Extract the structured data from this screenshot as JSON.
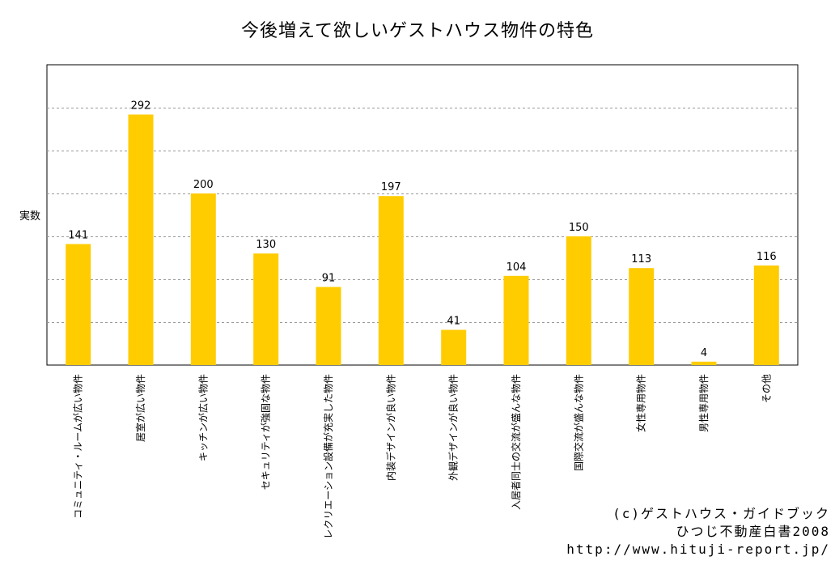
{
  "chart_data": {
    "type": "bar",
    "title": "今後増えて欲しいゲストハウス物件の特色",
    "xlabel": "",
    "ylabel": "実数",
    "categories": [
      "コミュニティ・ルームが広い物件",
      "居室が広い物件",
      "キッチンが広い物件",
      "セキュリティが強固な物件",
      "レクリエーション設備が充実した物件",
      "内装デザインが良い物件",
      "外観デザインが良い物件",
      "入居者同士の交流が盛んな物件",
      "国際交流が盛んな物件",
      "女性専用物件",
      "男性専用物件",
      "その他"
    ],
    "values": [
      141,
      292,
      200,
      130,
      91,
      197,
      41,
      104,
      150,
      113,
      4,
      116
    ],
    "ylim": [
      0,
      350
    ],
    "y_gridlines": [
      50,
      100,
      150,
      200,
      250,
      300
    ],
    "grid": true,
    "bar_color": "#FFCC00"
  },
  "credit": {
    "line1": "(c)ゲストハウス・ガイドブック",
    "line2": "ひつじ不動産白書2008",
    "line3": "http://www.hituji-report.jp/"
  }
}
